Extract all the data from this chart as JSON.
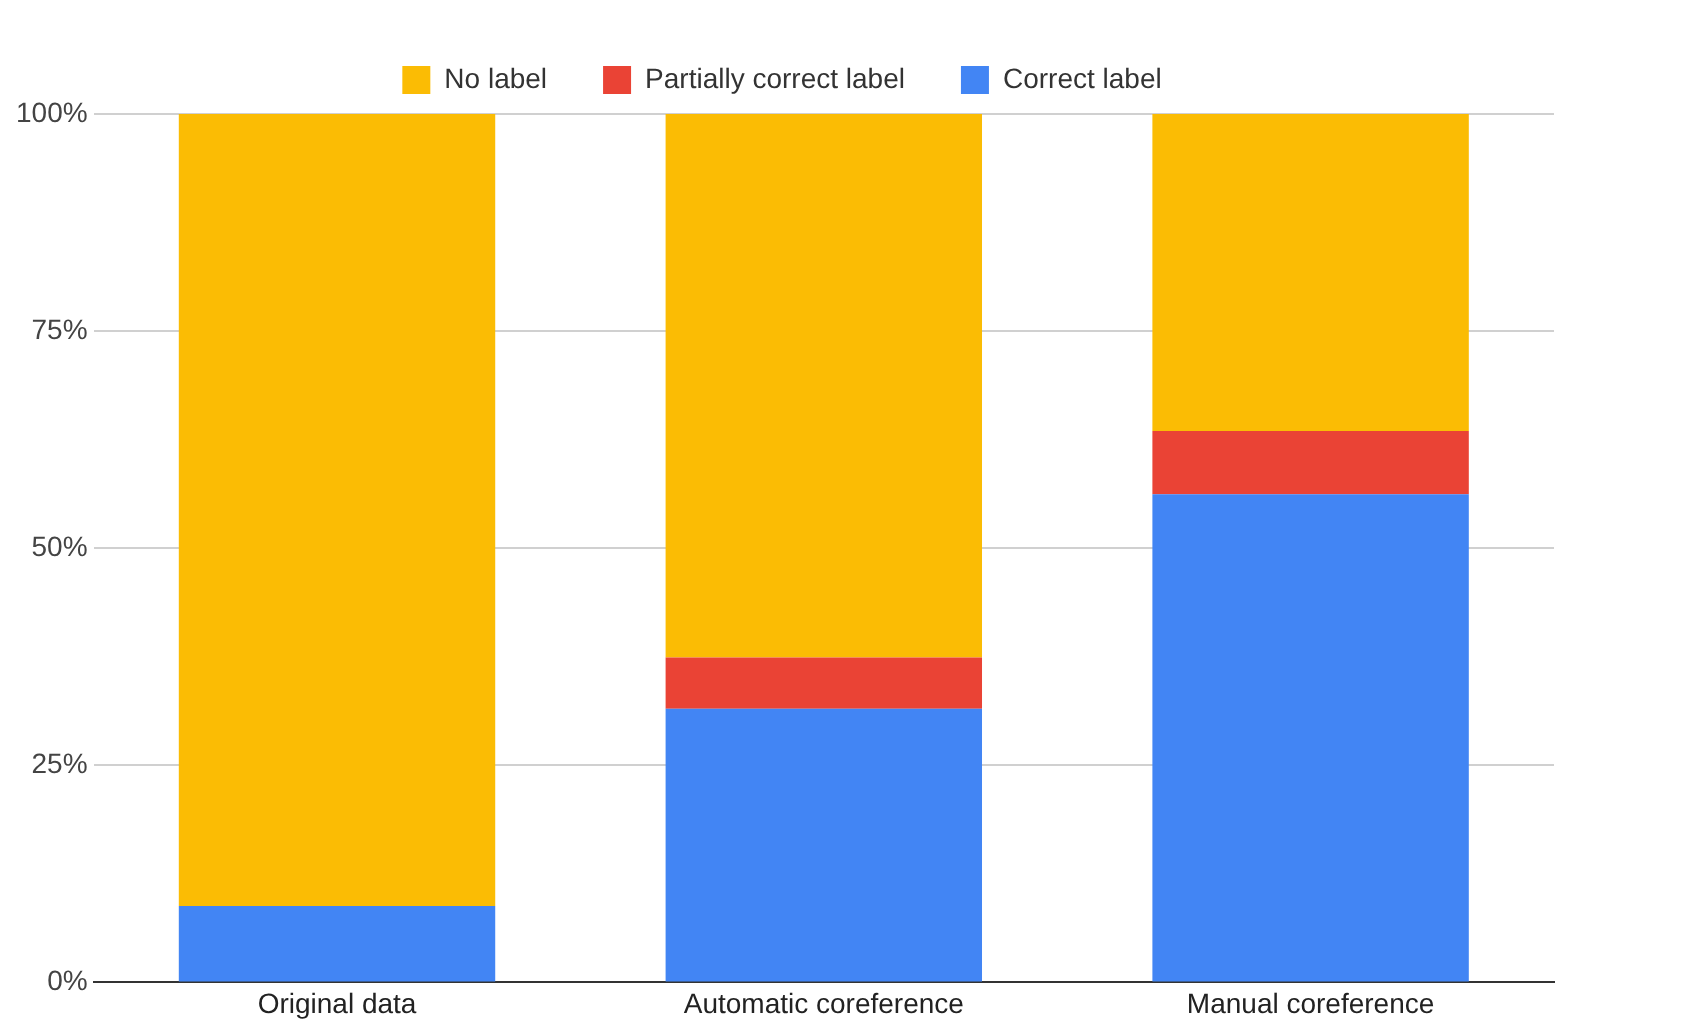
{
  "chart_data": {
    "type": "bar",
    "stacked": true,
    "categories": [
      "Original data",
      "Automatic coreference",
      "Manual coreference"
    ],
    "series": [
      {
        "name": "Correct label",
        "color": "#4285f4",
        "values": [
          8.8,
          31.5,
          56.2
        ]
      },
      {
        "name": "Partially correct label",
        "color": "#ea4335",
        "values": [
          0,
          5.9,
          7.3
        ]
      },
      {
        "name": "No label",
        "color": "#fbbc04",
        "values": [
          91.2,
          62.6,
          36.5
        ]
      }
    ],
    "ylim": [
      0,
      100
    ],
    "yticks": [
      {
        "value": 0,
        "label": "0%"
      },
      {
        "value": 25,
        "label": "25%"
      },
      {
        "value": 50,
        "label": "50%"
      },
      {
        "value": 75,
        "label": "75%"
      },
      {
        "value": 100,
        "label": "100%"
      }
    ],
    "grid": "y",
    "legend": "top"
  }
}
